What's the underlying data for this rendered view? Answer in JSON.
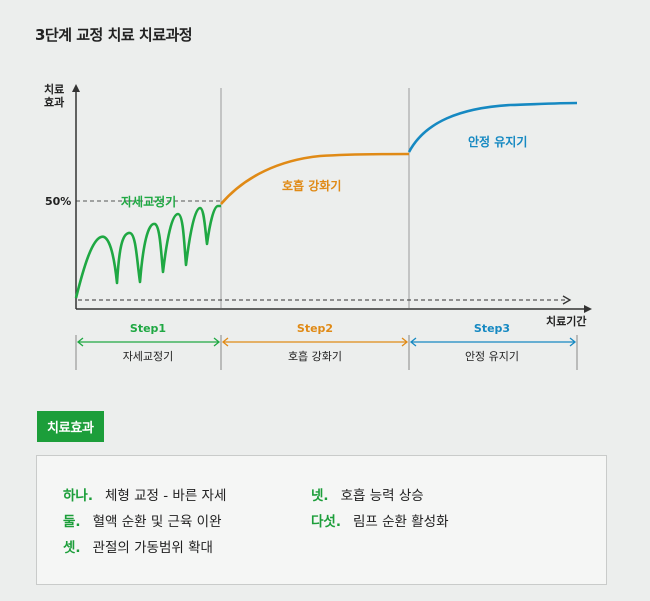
{
  "page_title": "3단계 교정 치료 치료과정",
  "colors": {
    "step1": "#1fa843",
    "step2": "#e08a16",
    "step3": "#1689c2",
    "axis": "#333333",
    "effect_badge": "#1c9e3a"
  },
  "chart_data": {
    "type": "line",
    "y_axis_label": [
      "치료",
      "효과"
    ],
    "x_axis_label": "치료기간",
    "y_ticks": [
      "50%"
    ],
    "phases": [
      {
        "name": "자세교정기",
        "step_label": "Step1",
        "phase_label": "자세교정기",
        "color": "#1fa843",
        "shape": "oscillating rise to 50%"
      },
      {
        "name": "호흡 강화기",
        "step_label": "Step2",
        "phase_label": "호흡 강화기",
        "color": "#e08a16",
        "shape": "curved rise"
      },
      {
        "name": "안정 유지기",
        "step_label": "Step3",
        "phase_label": "안정 유지기",
        "color": "#1689c2",
        "shape": "plateau"
      }
    ]
  },
  "effects": {
    "label": "치료효과",
    "items": [
      {
        "marker": "하나.",
        "text": "체형 교정 - 바른 자세"
      },
      {
        "marker": "둘.",
        "text": "혈액 순환 및 근육 이완"
      },
      {
        "marker": "셋.",
        "text": "관절의 가동범위 확대"
      },
      {
        "marker": "넷.",
        "text": "호흡 능력 상승"
      },
      {
        "marker": "다섯.",
        "text": "림프 순환 활성화"
      }
    ]
  }
}
